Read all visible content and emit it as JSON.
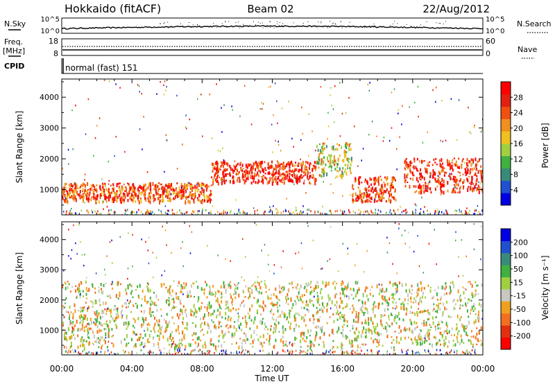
{
  "header": {
    "station": "Hokkaido (fitACF)",
    "beam": "Beam 02",
    "date": "22/Aug/2012"
  },
  "top_panels": {
    "nsky": {
      "label": "N.Sky",
      "ticks": [
        "10^5",
        "10^0"
      ]
    },
    "nsearch": {
      "label": "N.Search",
      "ticks": [
        "10^5",
        "10^0"
      ]
    },
    "freq": {
      "label_line1": "Freq.",
      "label_line2": "[MHz]",
      "ticks": [
        "18",
        "8"
      ]
    },
    "nave": {
      "label": "Nave",
      "ticks": [
        "60",
        "0"
      ]
    },
    "cpid": {
      "label": "CPID",
      "value": "normal (fast) 151"
    }
  },
  "chart_data": [
    {
      "type": "heatmap",
      "name": "power",
      "ylabel": "Slant Range [km]",
      "yticks": [
        1000,
        2000,
        3000,
        4000
      ],
      "ylim": [
        180,
        4590
      ],
      "xlabel": "Time UT",
      "xticks": [
        "00:00",
        "04:00",
        "08:00",
        "12:00",
        "16:00",
        "20:00",
        "00:00"
      ],
      "colorbar": {
        "label": "Power [dB]",
        "ticks": [
          "28",
          "24",
          "20",
          "16",
          "12",
          "8",
          "4"
        ],
        "colors": [
          "#0000e0",
          "#2050d0",
          "#3a8a7a",
          "#40b040",
          "#a0d040",
          "#f0c020",
          "#f09020",
          "#f05010",
          "#e02010",
          "#ff0000"
        ]
      },
      "bands": [
        {
          "t0": 0.0,
          "t1": 8.5,
          "r0": 600,
          "r1": 1200,
          "level": 0.75
        },
        {
          "t0": 8.5,
          "t1": 14.5,
          "r0": 1200,
          "r1": 1900,
          "level": 0.85
        },
        {
          "t0": 14.5,
          "t1": 16.5,
          "r0": 1400,
          "r1": 2500,
          "level": 0.5
        },
        {
          "t0": 16.5,
          "t1": 19.0,
          "r0": 600,
          "r1": 1400,
          "level": 0.8
        },
        {
          "t0": 19.5,
          "t1": 24.0,
          "r0": 900,
          "r1": 2000,
          "level": 0.85
        }
      ]
    },
    {
      "type": "heatmap",
      "name": "velocity",
      "ylabel": "Slant Range [km]",
      "yticks": [
        1000,
        2000,
        3000,
        4000
      ],
      "ylim": [
        180,
        4590
      ],
      "xlabel": "Time UT",
      "xticks": [
        "00:00",
        "04:00",
        "08:00",
        "12:00",
        "16:00",
        "20:00",
        "00:00"
      ],
      "colorbar": {
        "label": "Velocity [m s⁻¹]",
        "ticks": [
          "200",
          "100",
          "50",
          "15",
          "-15",
          "-50",
          "-100",
          "-200"
        ],
        "colors": [
          "#ff0000",
          "#e03010",
          "#f07020",
          "#f0a020",
          "#c8c8c0",
          "#a0d040",
          "#40b040",
          "#3a8a7a",
          "#2050d0",
          "#0000e0"
        ]
      },
      "bands": [
        {
          "t0": 0.0,
          "t1": 24.0,
          "r0": 400,
          "r1": 2600,
          "level": 0.45
        }
      ]
    }
  ]
}
